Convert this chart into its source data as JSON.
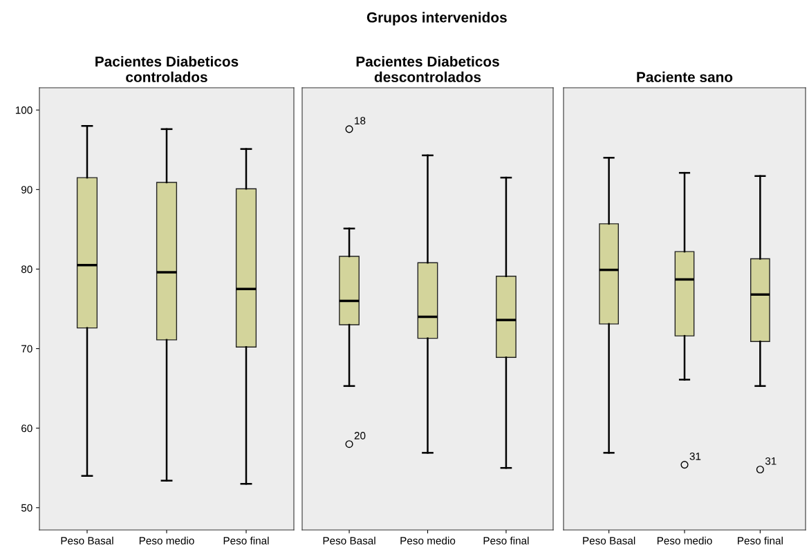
{
  "chart_data": [
    {
      "type": "box",
      "title": "Pacientes Diabeticos\ncontrolados",
      "annotations": [
        "Grupos intervenidos"
      ],
      "categories": [
        "Peso Basal",
        "Peso medio",
        "Peso final"
      ],
      "color": "#d3d49b",
      "ylim": [
        47.2,
        102.8
      ],
      "yticks": [
        50,
        60,
        70,
        80,
        90,
        100
      ],
      "grid": false,
      "marker": "circle",
      "boxes": [
        {
          "low": 54.0,
          "q1": 72.6,
          "median": 80.5,
          "q3": 91.5,
          "high": 98.0
        },
        {
          "low": 53.4,
          "q1": 71.1,
          "median": 79.6,
          "q3": 90.9,
          "high": 97.6
        },
        {
          "low": 53.0,
          "q1": 70.2,
          "median": 77.5,
          "q3": 90.1,
          "high": 95.1
        }
      ]
    },
    {
      "type": "box",
      "title": "Pacientes Diabeticos\ndescontrolados",
      "categories": [
        "Peso Basal",
        "Peso medio",
        "Peso final"
      ],
      "color": "#d3d49b",
      "ylim": [
        47.2,
        102.8
      ],
      "tick_labels": "x",
      "grid": false,
      "marker": "circle",
      "annotations": [
        "18",
        "20"
      ],
      "boxes": [
        {
          "low": 65.3,
          "q1": 73.0,
          "median": 76.0,
          "q3": 81.6,
          "high": 85.1,
          "outliers": [
            97.6,
            58.0
          ]
        },
        {
          "low": 56.9,
          "q1": 71.3,
          "median": 74.0,
          "q3": 80.8,
          "high": 94.3
        },
        {
          "low": 55.0,
          "q1": 68.9,
          "median": 73.6,
          "q3": 79.1,
          "high": 91.5
        }
      ]
    },
    {
      "type": "box",
      "title": "Paciente sano",
      "categories": [
        "Peso Basal",
        "Peso medio",
        "Peso final"
      ],
      "color": "#d3d49b",
      "ylim": [
        47.2,
        102.8
      ],
      "tick_labels": "x",
      "grid": false,
      "marker": "circle",
      "annotations": [
        "31",
        "31"
      ],
      "boxes": [
        {
          "low": 56.9,
          "q1": 73.1,
          "median": 79.9,
          "q3": 85.7,
          "high": 94.0
        },
        {
          "low": 66.1,
          "q1": 71.6,
          "median": 78.7,
          "q3": 82.2,
          "high": 92.1,
          "outliers": [
            55.4
          ]
        },
        {
          "low": 65.3,
          "q1": 70.9,
          "median": 76.8,
          "q3": 81.3,
          "high": 91.7,
          "outliers": [
            54.8
          ]
        }
      ]
    }
  ]
}
